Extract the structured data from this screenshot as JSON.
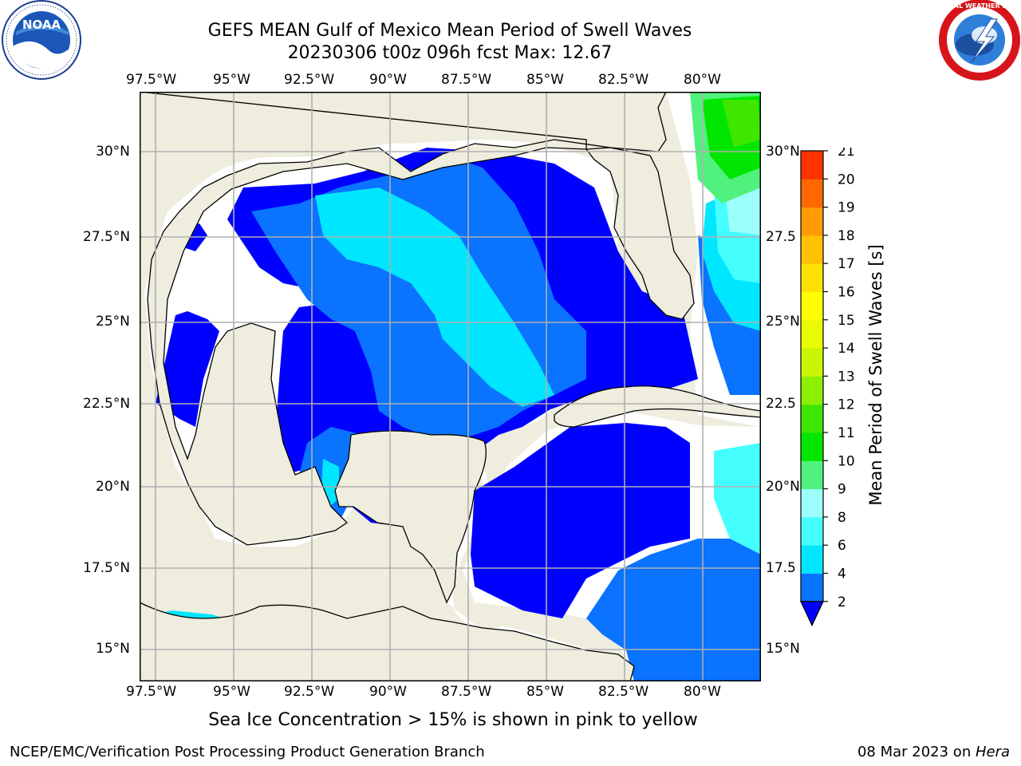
{
  "title": {
    "line1": "GEFS MEAN Gulf of Mexico Mean Period of Swell Waves",
    "line2": "20230306 t00z 096h fcst   Max: 12.67"
  },
  "map": {
    "lon_ticks": [
      "97.5°W",
      "95°W",
      "92.5°W",
      "90°W",
      "87.5°W",
      "85°W",
      "82.5°W",
      "80°W"
    ],
    "lat_ticks_left": [
      "30°N",
      "27.5°N",
      "25°N",
      "22.5°N",
      "20°N",
      "17.5°N",
      "15°N"
    ],
    "lat_ticks_right": [
      "30°N",
      "27.5",
      "25°N",
      "22.5",
      "20°N",
      "17.5",
      "15°N"
    ],
    "colors": {
      "land": "#eeedde",
      "ocean_missing": "#ffffff",
      "grid": "#b0b0b0",
      "coast": "#000000"
    }
  },
  "colorbar": {
    "label": "Mean Period of Swell Waves [s]",
    "ticks": [
      "2",
      "4",
      "6",
      "8",
      "9",
      "10",
      "11",
      "12",
      "13",
      "14",
      "15",
      "16",
      "17",
      "18",
      "19",
      "20",
      "21"
    ],
    "colors": [
      "#0a73ff",
      "#00e6ff",
      "#45ffff",
      "#9dfffc",
      "#50f27d",
      "#00e600",
      "#3ee600",
      "#8cf000",
      "#c8f500",
      "#eafa00",
      "#ffff00",
      "#fde200",
      "#ffc100",
      "#ff9b00",
      "#ff6800",
      "#ff3300"
    ],
    "under_color": "#0000ff"
  },
  "footnote": "Sea Ice Concentration > 15% is shown in pink to yellow",
  "credit": "NCEP/EMC/Verification Post Processing Product Generation Branch",
  "datestamp": {
    "date": "08 Mar 2023 on ",
    "host": "Hera"
  },
  "logos": {
    "noaa": "NOAA",
    "nws": "NATIONAL WEATHER SERVICE"
  }
}
